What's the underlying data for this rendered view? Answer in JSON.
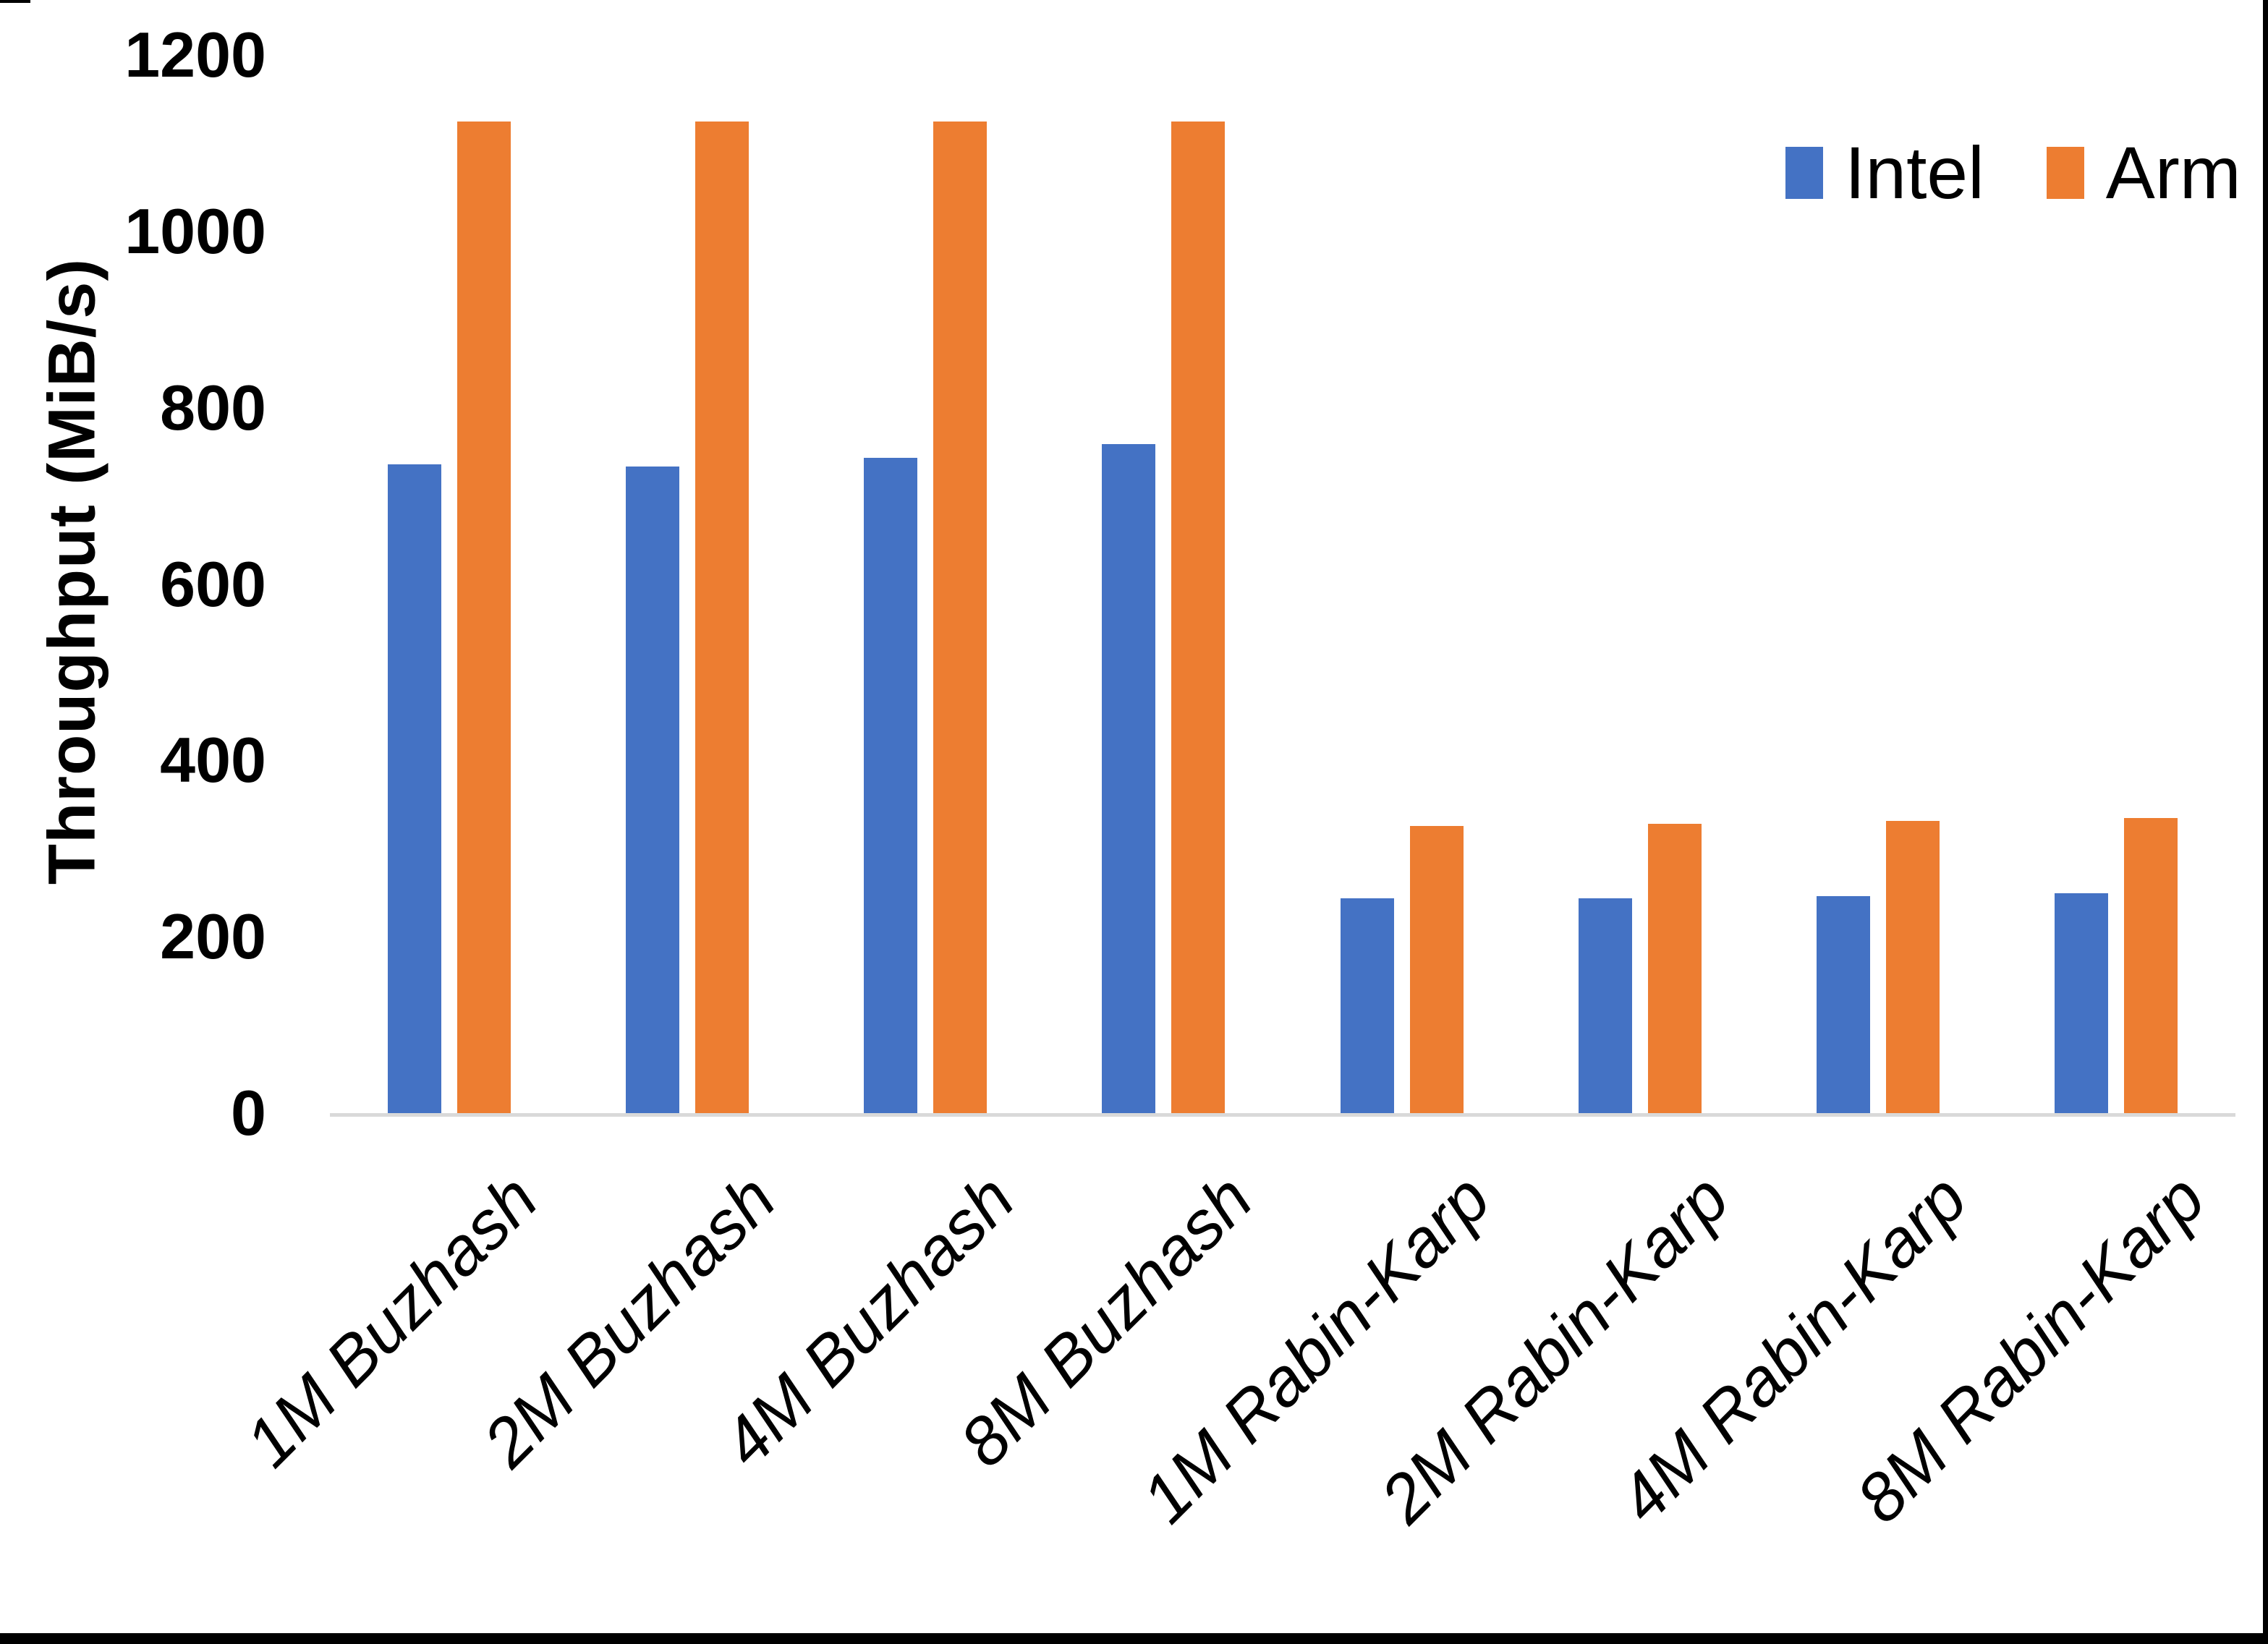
{
  "page": {
    "background": "#ffffff",
    "edge_border_color": "#000000",
    "axis_line_color": "#d9d9d9",
    "text_color": "#000000"
  },
  "legend": {
    "items": [
      {
        "label": "Intel",
        "color": "#4472c4"
      },
      {
        "label": "Arm",
        "color": "#ed7d31"
      }
    ]
  },
  "chart_data": {
    "type": "bar",
    "title": "",
    "xlabel": "",
    "ylabel": "Throughput (MiB/s)",
    "ylim": [
      0,
      1200
    ],
    "yticks": [
      0,
      200,
      400,
      600,
      800,
      1000,
      1200
    ],
    "grid": false,
    "legend_position": "top-right",
    "categories": [
      "1M Buzhash",
      "2M Buzhash",
      "4M Buzhash",
      "8M Buzhash",
      "1M Rabin-Karp",
      "2M Rabin-Karp",
      "4M Rabin-Karp",
      "8M Rabin-Karp"
    ],
    "series": [
      {
        "name": "Intel",
        "color": "#4472c4",
        "values": [
          737,
          735,
          745,
          760,
          245,
          245,
          248,
          251
        ]
      },
      {
        "name": "Arm",
        "color": "#ed7d31",
        "values": [
          1126,
          1126,
          1126,
          1126,
          327,
          330,
          333,
          336
        ]
      }
    ]
  }
}
